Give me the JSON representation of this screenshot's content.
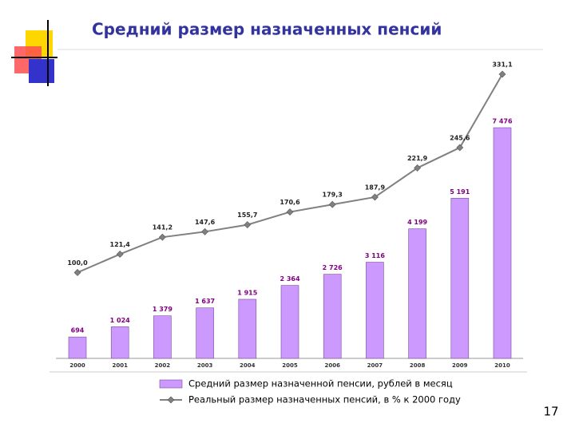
{
  "chart_data": {
    "type": "bar_line",
    "title": "Средний размер назначенных пенсий",
    "categories": [
      "2000",
      "2001",
      "2002",
      "2003",
      "2004",
      "2005",
      "2006",
      "2007",
      "2008",
      "2009",
      "2010"
    ],
    "series": [
      {
        "name": "Средний размер назначенной пенсии, рублей в месяц",
        "type": "bar",
        "color": "#cc99ff",
        "values": [
          694,
          1024,
          1379,
          1637,
          1915,
          2364,
          2726,
          3116,
          4199,
          5191,
          7476
        ],
        "value_labels": [
          "694",
          "1 024",
          "1 379",
          "1 637",
          "1 915",
          "2 364",
          "2 726",
          "3 116",
          "4 199",
          "5 191",
          "7 476"
        ]
      },
      {
        "name": "Реальный размер назначенных пенсий, в % к 2000 году",
        "type": "line",
        "color": "#808080",
        "values": [
          100.0,
          121.4,
          141.2,
          147.6,
          155.7,
          170.6,
          179.3,
          187.9,
          221.9,
          245.6,
          331.1
        ],
        "value_labels": [
          "100,0",
          "121,4",
          "141,2",
          "147,6",
          "155,7",
          "170,6",
          "179,3",
          "187,9",
          "221,9",
          "245,6",
          "331,1"
        ]
      }
    ]
  },
  "slide_number": "17"
}
